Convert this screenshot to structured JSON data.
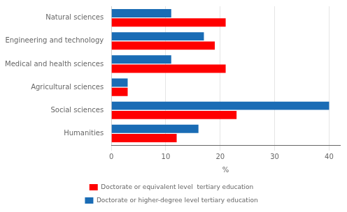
{
  "chart_data": {
    "type": "bar",
    "orientation": "horizontal",
    "categories": [
      "Humanities",
      "Social sciences",
      "Agricultural sciences",
      "Medical and health sciences",
      "Engineering and technology",
      "Natural sciences"
    ],
    "series": [
      {
        "name": "Doctorate or equivalent level  tertiary education",
        "color": "#FF0000",
        "values": [
          12,
          23,
          3,
          21,
          19,
          21
        ]
      },
      {
        "name": "Doctorate or higher-degree level tertiary education",
        "color": "#1A6CB5",
        "values": [
          16,
          40,
          3,
          11,
          17,
          11
        ]
      }
    ],
    "xlabel": "%",
    "xlim": [
      0,
      42
    ],
    "xticks": [
      0,
      10,
      20,
      30,
      40
    ],
    "grid": true,
    "legend": "bottom"
  }
}
